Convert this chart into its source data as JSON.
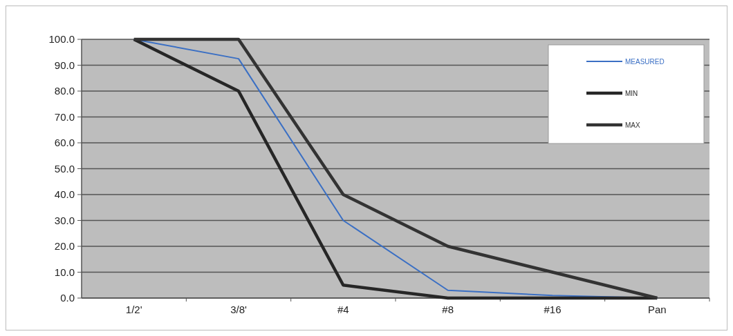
{
  "chart_data": {
    "type": "line",
    "categories": [
      "1/2'",
      "3/8'",
      "#4",
      "#8",
      "#16",
      "Pan"
    ],
    "series": [
      {
        "name": "MEASURED",
        "color": "#3a6fc4",
        "values": [
          100,
          92.5,
          30,
          3,
          1,
          0
        ]
      },
      {
        "name": "MIN",
        "color": "#262626",
        "values": [
          100,
          80,
          5,
          0,
          0,
          0
        ]
      },
      {
        "name": "MAX",
        "color": "#333333",
        "values": [
          100,
          100,
          40,
          20,
          10,
          0
        ]
      }
    ],
    "ylim": [
      0,
      100
    ],
    "yticks": [
      {
        "value": 0,
        "label": "0.0"
      },
      {
        "value": 10,
        "label": "10.0"
      },
      {
        "value": 20,
        "label": "20.0"
      },
      {
        "value": 30,
        "label": "30.0"
      },
      {
        "value": 40,
        "label": "40.0"
      },
      {
        "value": 50,
        "label": "50.0"
      },
      {
        "value": 60,
        "label": "60.0"
      },
      {
        "value": 70,
        "label": "70.0"
      },
      {
        "value": 80,
        "label": "80.0"
      },
      {
        "value": 90,
        "label": "90.0"
      },
      {
        "value": 100,
        "label": "100.0"
      }
    ],
    "grid": "y",
    "legend": "top right",
    "marker": "none",
    "line_style": "solid"
  }
}
